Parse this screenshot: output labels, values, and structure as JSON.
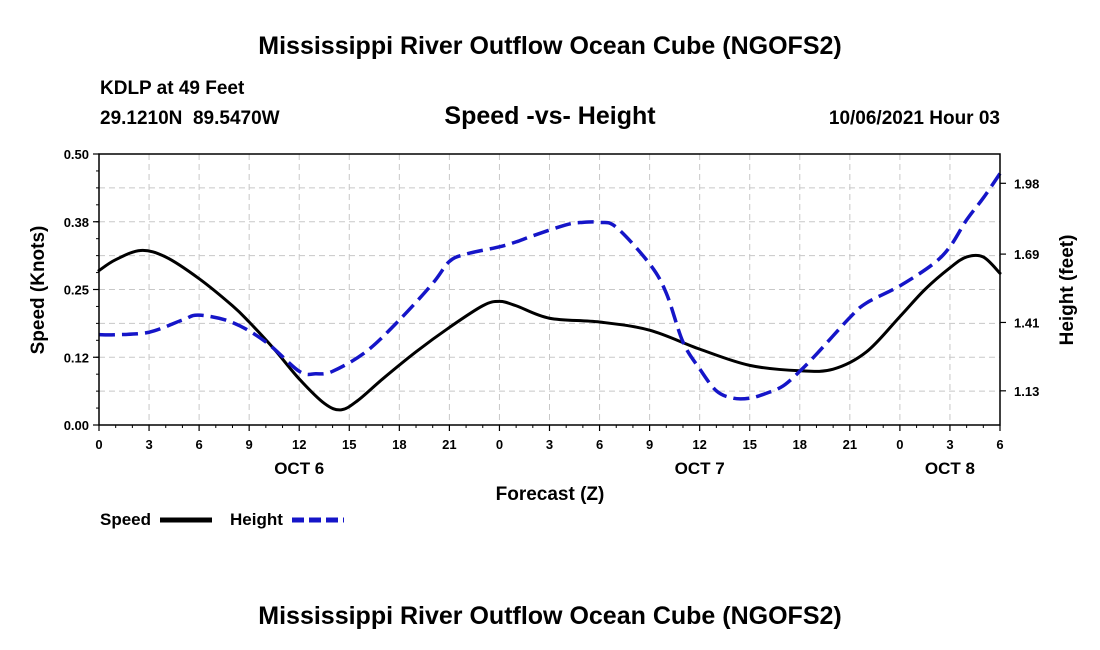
{
  "chart_data": {
    "type": "line",
    "title": "Mississippi River Outflow Ocean Cube (NGOFS2)",
    "footer_title": "Mississippi River Outflow Ocean Cube (NGOFS2)",
    "subtitle": "Speed -vs- Height",
    "station": "KDLP at 49 Feet",
    "location": "29.1210N  89.5470W",
    "datetime": "10/06/2021 Hour 03",
    "xlabel": "Forecast (Z)",
    "ylabel": "Speed (Knots)",
    "y2label": "Height (feet)",
    "x_range": [
      0,
      54
    ],
    "ylim": [
      0,
      0.5
    ],
    "y2lim": [
      0.99,
      2.1
    ],
    "x_ticks": [
      0,
      3,
      6,
      9,
      12,
      15,
      18,
      21,
      24,
      27,
      30,
      33,
      36,
      39,
      42,
      45,
      48,
      51,
      54
    ],
    "x_tick_labels": [
      "0",
      "3",
      "6",
      "9",
      "12",
      "15",
      "18",
      "21",
      "0",
      "3",
      "6",
      "9",
      "12",
      "15",
      "18",
      "21",
      "0",
      "3",
      "6"
    ],
    "day_labels": [
      {
        "x": 12,
        "label": "OCT 6"
      },
      {
        "x": 36,
        "label": "OCT 7"
      },
      {
        "x": 51,
        "label": "OCT 8"
      }
    ],
    "y_ticks": [
      0,
      0.125,
      0.25,
      0.375,
      0.5
    ],
    "y_tick_labels": [
      "0.00",
      "0.12",
      "0.25",
      "0.38",
      "0.50"
    ],
    "y2_ticks": [
      1.13,
      1.41,
      1.69,
      1.98
    ],
    "y2_tick_labels": [
      "1.13",
      "1.41",
      "1.69",
      "1.98"
    ],
    "grid": true,
    "legend_position": "bottom-left",
    "series": [
      {
        "name": "Speed",
        "axis": "left",
        "color": "#000000",
        "style": "solid",
        "x": [
          0,
          1,
          2.5,
          4,
          6,
          8,
          9,
          10.5,
          12,
          13.5,
          14.5,
          15.5,
          17,
          19,
          21,
          23,
          24,
          25,
          27,
          30,
          33,
          36,
          39,
          42,
          44,
          46,
          48,
          49.5,
          51,
          52,
          53,
          54
        ],
        "values": [
          0.285,
          0.305,
          0.322,
          0.31,
          0.27,
          0.22,
          0.19,
          0.14,
          0.085,
          0.04,
          0.028,
          0.045,
          0.085,
          0.135,
          0.18,
          0.22,
          0.228,
          0.22,
          0.197,
          0.19,
          0.175,
          0.14,
          0.11,
          0.1,
          0.103,
          0.135,
          0.2,
          0.25,
          0.29,
          0.31,
          0.31,
          0.28
        ]
      },
      {
        "name": "Height",
        "axis": "right",
        "color": "#1515c8",
        "style": "dashed",
        "x": [
          0,
          1,
          3,
          5,
          6,
          8,
          10,
          12,
          13,
          14,
          16,
          18,
          20,
          21,
          22,
          24,
          25,
          26,
          28,
          29,
          30,
          31,
          33,
          34,
          35,
          36,
          37,
          38,
          39,
          40,
          41,
          42,
          43,
          45,
          46,
          48,
          50,
          51,
          52,
          53,
          54
        ],
        "values": [
          1.36,
          1.36,
          1.37,
          1.42,
          1.44,
          1.41,
          1.33,
          1.21,
          1.2,
          1.21,
          1.29,
          1.42,
          1.57,
          1.66,
          1.69,
          1.72,
          1.74,
          1.765,
          1.81,
          1.82,
          1.82,
          1.8,
          1.65,
          1.53,
          1.33,
          1.22,
          1.13,
          1.1,
          1.1,
          1.12,
          1.15,
          1.21,
          1.28,
          1.43,
          1.49,
          1.56,
          1.65,
          1.72,
          1.83,
          1.92,
          2.02
        ]
      }
    ]
  }
}
